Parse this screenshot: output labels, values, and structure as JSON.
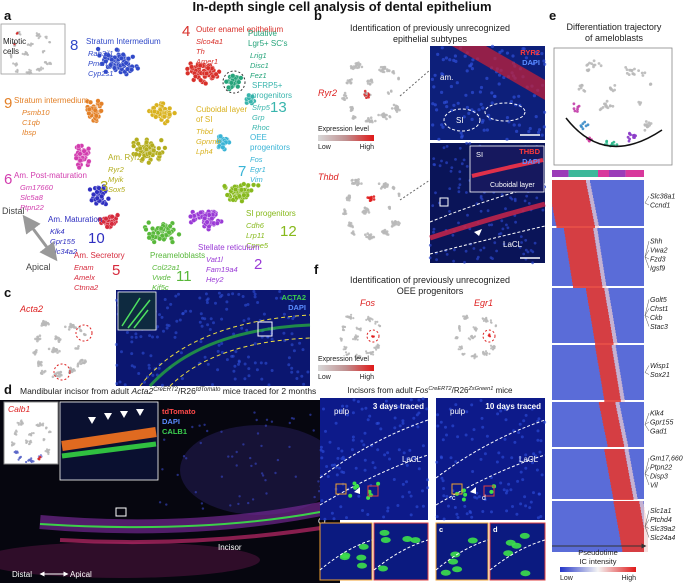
{
  "title": "In-depth single cell analysis of dental epithelium",
  "panel_a": {
    "label": "a",
    "inset_label": [
      "Mitotic",
      "cells"
    ],
    "clusters": [
      {
        "number": 8,
        "name": [
          "Stratum Intermedium"
        ],
        "genes": [
          "Rab3il1",
          "Pmch",
          "Cyp2s1"
        ]
      },
      {
        "number": 4,
        "name": [
          "Outer enamel epithelium"
        ],
        "genes": [
          "Slco4a1",
          "Th",
          "Amer1"
        ]
      },
      {
        "name": [
          "Putative",
          "Lgr5+ SC's"
        ],
        "genes": [
          "Lrig1",
          "Disc1",
          "Fez1"
        ]
      },
      {
        "number": 13,
        "name": [
          "SFRP5+",
          "progenitors"
        ],
        "genes": [
          "Sfrp5",
          "Grp",
          "Rhoc"
        ]
      },
      {
        "number": 9,
        "name": [
          "Stratum intermedium"
        ],
        "genes": [
          "Psmb10",
          "C1qb",
          "Ibsp"
        ]
      },
      {
        "name": [
          "Cuboidal layer",
          "of SI"
        ],
        "genes": [
          "Thbd",
          "Gpnmb",
          "Lph4"
        ]
      },
      {
        "number": 7,
        "name": [
          "OEE",
          "progenitors"
        ],
        "genes": [
          "Fos",
          "Egr1",
          "Vim"
        ]
      },
      {
        "number": 6,
        "name": [
          "Am. Post-maturation"
        ],
        "genes": [
          "Gm17660",
          "Slc5a8",
          "Ptpn22"
        ]
      },
      {
        "number": 3,
        "name": [
          "Am. Ryr2+"
        ],
        "genes": [
          "Ryr2",
          "Myik",
          "Sox5"
        ]
      },
      {
        "number": 12,
        "name": [
          "SI progenitors"
        ],
        "genes": [
          "Cdh6",
          "Lrp11",
          "Cpne5"
        ]
      },
      {
        "number": 10,
        "name": [
          "Am. Maturation"
        ],
        "genes": [
          "Klk4",
          "Gpr155",
          "Slc34a2"
        ]
      },
      {
        "number": 5,
        "name": [
          "Am. Secretory"
        ],
        "genes": [
          "Enam",
          "Amelx",
          "Ctnna2"
        ]
      },
      {
        "number": 11,
        "name": [
          "Preameloblasts"
        ],
        "genes": [
          "Col22a1",
          "Vwde",
          "Kif5c"
        ]
      },
      {
        "number": 2,
        "name": [
          "Stellate reticulum"
        ],
        "genes": [
          "Vat1l",
          "Fam19a4",
          "Hey2"
        ]
      }
    ],
    "axis": {
      "distal": "Distal",
      "apical": "Apical"
    }
  },
  "panel_b": {
    "label": "b",
    "title": [
      "Identification of previously unrecognized",
      "epithelial subtypes"
    ],
    "genes": [
      "Ryr2",
      "Thbd"
    ],
    "legend": {
      "title": "Expression level",
      "low": "Low",
      "high": "High"
    },
    "image_top": {
      "stains": [
        "RYR2",
        "DAPI"
      ],
      "labels": [
        "am.",
        "SI"
      ]
    },
    "image_bottom": {
      "stains": [
        "THBD",
        "DAPI"
      ],
      "labels": [
        "SI",
        "Cuboidal layer",
        "LaCL"
      ]
    }
  },
  "panel_c": {
    "label": "c",
    "gene": "Acta2",
    "stains": [
      "ACTA2",
      "DAPI"
    ]
  },
  "panel_d": {
    "label": "d",
    "title": {
      "prefix": "Mandibular incisor from adult ",
      "gene": "Acta2",
      "sup1": "CreERT2",
      "mid": "/R26",
      "sup2": "tdTomato",
      "suffix": " mice traced for 2 months"
    },
    "inset_gene": "Calb1",
    "stains": [
      "tdTomato",
      "DAPI",
      "CALB1"
    ],
    "labels": [
      "CL",
      "Incisor"
    ],
    "axis": {
      "distal": "Distal",
      "apical": "Apical"
    }
  },
  "panel_e": {
    "label": "e",
    "title": [
      "Differentiation trajectory",
      "of ameloblasts"
    ],
    "gene_groups": [
      [
        "Slc38a1",
        "Ccnd1"
      ],
      [
        "Shh",
        "Vwa2",
        "Fzd3",
        "Igsf9"
      ],
      [
        "Golt5",
        "Chst1",
        "Ckb",
        "Stac3"
      ],
      [
        "Wisp1",
        "Sox21"
      ],
      [
        "Klk4",
        "Gpr155",
        "Gad1"
      ],
      [
        "Gm17,660",
        "Ptpn22",
        "Disp3",
        "Vil"
      ],
      [
        "Slc1a1",
        "Ptchd4",
        "Slc39a2",
        "Slc24a4"
      ]
    ],
    "xlabel": "Pseudotime",
    "legend": {
      "title": "IC intensity",
      "low": "Low",
      "high": "High"
    }
  },
  "panel_f": {
    "label": "f",
    "title": [
      "Identification of previously unrecognized",
      "OEE progenitors"
    ],
    "genes": [
      "Fos",
      "Egr1"
    ],
    "legend": {
      "title": "Expression level",
      "low": "Low",
      "high": "High"
    },
    "subtitle": {
      "prefix": "Incisors from adult ",
      "gene": "Fos",
      "sup1": "CreERT2",
      "mid": "/R26",
      "sup2": "ZsGreen1",
      "suffix": " mice"
    },
    "images": [
      {
        "caption": "3 days traced",
        "labels": [
          "pulp",
          "LaCL"
        ]
      },
      {
        "caption": "10 days traced",
        "labels": [
          "pulp",
          "LaCL"
        ],
        "marks": [
          "c",
          "d"
        ]
      }
    ],
    "crop_labels": [
      "c",
      "d"
    ]
  }
}
